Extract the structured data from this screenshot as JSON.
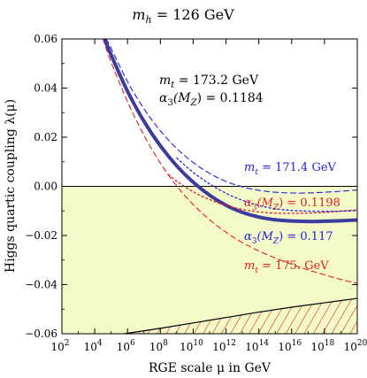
{
  "chart_data": {
    "type": "line",
    "title_main": "m",
    "title_sub": "h",
    "title_rest": " = 126 GeV",
    "xlabel": "RGE scale μ in GeV",
    "ylabel": "Higgs quartic coupling λ(μ)",
    "x_log10": true,
    "xlim_log10": [
      2,
      20
    ],
    "ylim": [
      -0.06,
      0.06
    ],
    "x_ticks_exp": [
      2,
      4,
      6,
      8,
      10,
      12,
      14,
      16,
      18,
      20
    ],
    "y_ticks": [
      {
        "v": 0.06,
        "label": "0.06"
      },
      {
        "v": 0.04,
        "label": "0.04"
      },
      {
        "v": 0.02,
        "label": "0.02"
      },
      {
        "v": 0.0,
        "label": "0.00"
      },
      {
        "v": -0.02,
        "label": "−0.02"
      },
      {
        "v": -0.04,
        "label": "−0.04"
      },
      {
        "v": -0.06,
        "label": "−0.06"
      }
    ],
    "colors": {
      "central": "#3c3c9c",
      "mt_band": "#2020e0",
      "alpha_band": "#e02020",
      "alpha_low": "#2020e0",
      "instability": "#f3fac8",
      "hatch": "#e02020"
    },
    "series": [
      {
        "key": "central",
        "style": "solid-thick",
        "x": [
          4.6,
          5,
          6,
          7,
          8,
          9,
          10,
          11,
          12,
          13,
          14,
          15,
          16,
          17,
          18,
          19,
          20
        ],
        "y": [
          0.06,
          0.0535,
          0.0387,
          0.0265,
          0.0165,
          0.0083,
          0.0017,
          -0.0036,
          -0.0077,
          -0.0106,
          -0.0125,
          -0.0136,
          -0.0141,
          -0.0143,
          -0.0142,
          -0.014,
          -0.0137
        ]
      },
      {
        "key": "mt_low",
        "style": "dashed-blue",
        "x": [
          4.7,
          5,
          6,
          7,
          8,
          9,
          10,
          11,
          12,
          13,
          14,
          15,
          16,
          17,
          18,
          19,
          20
        ],
        "y": [
          0.06,
          0.0562,
          0.0426,
          0.0316,
          0.0226,
          0.0154,
          0.0097,
          0.0053,
          0.002,
          -0.0002,
          -0.0016,
          -0.0024,
          -0.0027,
          -0.0027,
          -0.0024,
          -0.002,
          -0.0015
        ]
      },
      {
        "key": "mt_high",
        "style": "dashed-red",
        "x": [
          4.5,
          5,
          6,
          7,
          8,
          9,
          10,
          11,
          12,
          13,
          14,
          15,
          16,
          17,
          18,
          19,
          20
        ],
        "y": [
          0.06,
          0.0505,
          0.0345,
          0.0208,
          0.0095,
          0.0001,
          -0.0074,
          -0.0136,
          -0.0187,
          -0.0229,
          -0.0263,
          -0.0292,
          -0.0317,
          -0.034,
          -0.036,
          -0.0379,
          -0.0395
        ]
      },
      {
        "key": "alpha_high",
        "style": "dotted-red",
        "x": [
          8.5,
          9,
          10,
          11,
          12,
          13,
          14,
          15,
          16,
          17,
          18,
          19,
          20
        ],
        "y": [
          0.0048,
          0.0021,
          -0.0022,
          -0.0054,
          -0.0078,
          -0.0094,
          -0.0104,
          -0.0109,
          -0.011,
          -0.0109,
          -0.0106,
          -0.0101,
          -0.0096
        ]
      },
      {
        "key": "alpha_low",
        "style": "dotted-blue",
        "x": [
          9,
          10,
          11,
          12,
          13,
          14,
          15,
          16,
          17,
          18,
          19,
          20
        ],
        "y": [
          0.0115,
          0.0057,
          0.001,
          -0.0028,
          -0.0057,
          -0.0078,
          -0.0091,
          -0.0098,
          -0.0101,
          -0.0102,
          -0.0101,
          -0.0099
        ]
      }
    ],
    "hatch_boundary": {
      "x": [
        5.8,
        8,
        10,
        12,
        14,
        16,
        18,
        20
      ],
      "y": [
        -0.06,
        -0.0578,
        -0.0556,
        -0.0534,
        -0.0512,
        -0.0492,
        -0.0474,
        -0.0456
      ]
    },
    "annotations": {
      "mt_central": {
        "sym": "m",
        "sub": "t",
        "rest": " = 173.2 GeV"
      },
      "alpha_central": {
        "sym": "α",
        "sub": "3",
        "arg": "(M",
        "argsub": "Z",
        "rest": ") = 0.1184"
      },
      "mt_low_label": {
        "sym": "m",
        "sub": "t",
        "rest": " = 171.4 GeV"
      },
      "alpha_high_label": {
        "sym": "α",
        "sub": "3",
        "arg": "(M",
        "argsub": "Z",
        "rest": ") = 0.1198"
      },
      "alpha_low_label": {
        "sym": "α",
        "sub": "3",
        "arg": "(M",
        "argsub": "Z",
        "rest": ") = 0.117"
      },
      "mt_high_label": {
        "sym": "m",
        "sub": "t",
        "rest": " = 175. GeV"
      }
    }
  }
}
